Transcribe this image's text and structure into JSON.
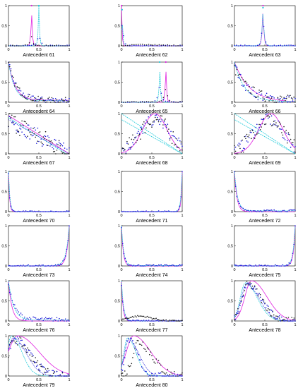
{
  "figure": {
    "y_ticks": [
      "0",
      "0.5",
      "1"
    ],
    "x_ticks": [
      "0",
      "0.5",
      "1"
    ],
    "colors": {
      "magenta": "#e020e0",
      "cyan": "#18c8d8",
      "blue": "#1a1ad8",
      "gray": "#808080",
      "dark": "#202020"
    }
  },
  "chart_data": [
    {
      "type": "line",
      "xlabel": "Antecedent 61",
      "xlim": [
        0,
        1
      ],
      "ylim": [
        0,
        1
      ],
      "peaks": [
        {
          "color": "magenta",
          "x": 0.38,
          "y": 1.0,
          "w": 0.012
        },
        {
          "color": "cyan",
          "x": 0.5,
          "y": 1.0,
          "w": 0.012
        }
      ],
      "scatter": [
        {
          "color": "blue",
          "x": 0.5,
          "y": 0.32,
          "w": 0.03
        },
        {
          "color": "dark",
          "x": 0.38,
          "y": 0.22,
          "w": 0.03
        }
      ]
    },
    {
      "type": "line",
      "xlabel": "Antecedent 62",
      "xlim": [
        0,
        1
      ],
      "ylim": [
        0,
        1
      ],
      "peaks": [
        {
          "color": "magenta",
          "x": 0.0,
          "y": 1.0,
          "w": 0.01
        },
        {
          "color": "cyan",
          "x": 0.01,
          "y": 0.9,
          "w": 0.012
        }
      ],
      "scatter": [
        {
          "color": "blue",
          "x": 0.01,
          "y": 0.85,
          "w": 0.02
        },
        {
          "color": "dark",
          "x": 0.45,
          "y": 0.05,
          "w": 0.2
        }
      ]
    },
    {
      "type": "line",
      "xlabel": "Antecedent 63",
      "xlim": [
        0,
        1
      ],
      "ylim": [
        0,
        1
      ],
      "peaks": [
        {
          "color": "magenta",
          "x": 0.47,
          "y": 1.0,
          "w": 0.015
        },
        {
          "color": "cyan",
          "x": 0.47,
          "y": 0.95,
          "w": 0.018
        }
      ],
      "scatter": [
        {
          "color": "blue",
          "x": 0.47,
          "y": 0.9,
          "w": 0.02
        }
      ]
    },
    {
      "type": "line",
      "xlabel": "Antecedent 64",
      "xlim": [
        0,
        1
      ],
      "ylim": [
        0,
        1
      ],
      "decays": [
        {
          "color": "magenta",
          "k": 9,
          "tail": 0.05
        },
        {
          "color": "cyan",
          "k": 10,
          "tail": 0.04
        }
      ],
      "decay_scatter": [
        {
          "color": "blue",
          "k": 8,
          "amp": 1.0,
          "tail": 0.05,
          "noise": 0.08
        },
        {
          "color": "dark",
          "k": 7,
          "amp": 0.9,
          "tail": 0.04,
          "noise": 0.08
        }
      ]
    },
    {
      "type": "line",
      "xlabel": "Antecedent 65",
      "xlim": [
        0,
        1
      ],
      "ylim": [
        0,
        1
      ],
      "peaks": [
        {
          "color": "magenta",
          "x": 0.73,
          "y": 1.0,
          "w": 0.012
        },
        {
          "color": "cyan",
          "x": 0.63,
          "y": 1.0,
          "w": 0.012
        }
      ],
      "scatter": [
        {
          "color": "blue",
          "x": 0.63,
          "y": 0.5,
          "w": 0.03
        },
        {
          "color": "dark",
          "x": 0.73,
          "y": 0.4,
          "w": 0.03
        }
      ]
    },
    {
      "type": "line",
      "xlabel": "Antecedent 66",
      "xlim": [
        0,
        1
      ],
      "ylim": [
        0,
        1
      ],
      "decays": [
        {
          "color": "magenta",
          "k": 4,
          "tail": 0.0
        },
        {
          "color": "cyan",
          "k": 6,
          "tail": 0.02
        }
      ],
      "decay_scatter": [
        {
          "color": "blue",
          "k": 5,
          "amp": 0.9,
          "tail": 0.05,
          "noise": 0.12
        },
        {
          "color": "dark",
          "k": 4,
          "amp": 0.8,
          "tail": 0.04,
          "noise": 0.12
        }
      ]
    },
    {
      "type": "line",
      "xlabel": "Antecedent 67",
      "xlim": [
        0,
        1
      ],
      "ylim": [
        0,
        1
      ],
      "lines": [
        {
          "color": "magenta",
          "fn": "lin",
          "a": 0.95,
          "b": -0.95
        },
        {
          "color": "cyan",
          "fn": "lin",
          "a": 0.9,
          "b": -0.95
        },
        {
          "color": "blue",
          "fn": "lin",
          "a": 0.85,
          "b": -0.85
        }
      ],
      "wide_scatter": [
        {
          "color": "blue",
          "shape": "dec",
          "noise": 0.2
        },
        {
          "color": "dark",
          "shape": "dec",
          "noise": 0.25
        }
      ]
    },
    {
      "type": "line",
      "xlabel": "Antecedent 68",
      "xlim": [
        0,
        1
      ],
      "ylim": [
        0,
        1
      ],
      "lines": [
        {
          "color": "cyan",
          "fn": "lin",
          "a": 1.0,
          "b": -1.0
        },
        {
          "color": "cyan",
          "fn": "lin",
          "a": 0.85,
          "b": -0.85
        },
        {
          "color": "magenta",
          "fn": "bump",
          "c": 0.55,
          "s": 0.2,
          "amp": 1.0
        }
      ],
      "wide_scatter": [
        {
          "color": "blue",
          "shape": "bump",
          "noise": 0.15
        },
        {
          "color": "dark",
          "shape": "bump",
          "noise": 0.2
        }
      ]
    },
    {
      "type": "line",
      "xlabel": "Antecedent 69",
      "xlim": [
        0,
        1
      ],
      "ylim": [
        0,
        1
      ],
      "lines": [
        {
          "color": "cyan",
          "fn": "lin",
          "a": 1.0,
          "b": -1.0
        },
        {
          "color": "cyan",
          "fn": "lin",
          "a": 0.85,
          "b": -0.85
        },
        {
          "color": "magenta",
          "fn": "bump",
          "c": 0.6,
          "s": 0.2,
          "amp": 1.0
        }
      ],
      "wide_scatter": [
        {
          "color": "blue",
          "shape": "bump",
          "noise": 0.15
        },
        {
          "color": "dark",
          "shape": "bump",
          "noise": 0.2
        }
      ]
    },
    {
      "type": "line",
      "xlabel": "Antecedent 70",
      "xlim": [
        0,
        1
      ],
      "ylim": [
        0,
        1
      ],
      "decays": [
        {
          "color": "magenta",
          "k": 60,
          "tail": 0.0
        },
        {
          "color": "cyan",
          "k": 45,
          "tail": 0.0
        }
      ],
      "decay_scatter": [
        {
          "color": "blue",
          "k": 50,
          "amp": 0.95,
          "tail": 0.0,
          "noise": 0.02
        }
      ]
    },
    {
      "type": "line",
      "xlabel": "Antecedent 71",
      "xlim": [
        0,
        1
      ],
      "ylim": [
        0,
        1
      ],
      "rises": [
        {
          "color": "magenta",
          "k": 60
        },
        {
          "color": "cyan",
          "k": 45
        }
      ],
      "rise_scatter": [
        {
          "color": "blue",
          "k": 50,
          "noise": 0.02
        }
      ]
    },
    {
      "type": "line",
      "xlabel": "Antecedent 72",
      "xlim": [
        0,
        1
      ],
      "ylim": [
        0,
        1
      ],
      "decays": [
        {
          "color": "magenta",
          "k": 25,
          "tail": 0.0
        },
        {
          "color": "cyan",
          "k": 20,
          "tail": 0.02
        }
      ],
      "decay_scatter": [
        {
          "color": "blue",
          "k": 22,
          "amp": 0.95,
          "tail": 0.02,
          "noise": 0.03
        }
      ]
    },
    {
      "type": "line",
      "xlabel": "Antecedent 73",
      "xlim": [
        0,
        1
      ],
      "ylim": [
        0,
        1
      ],
      "rises": [
        {
          "color": "magenta",
          "k": 25
        },
        {
          "color": "cyan",
          "k": 20
        }
      ],
      "rise_scatter": [
        {
          "color": "blue",
          "k": 22,
          "noise": 0.03
        }
      ]
    },
    {
      "type": "line",
      "xlabel": "Antecedent 74",
      "xlim": [
        0,
        1
      ],
      "ylim": [
        0,
        1
      ],
      "decays": [
        {
          "color": "magenta",
          "k": 35,
          "tail": 0.0
        },
        {
          "color": "cyan",
          "k": 28,
          "tail": 0.01
        }
      ],
      "decay_scatter": [
        {
          "color": "blue",
          "k": 30,
          "amp": 0.95,
          "tail": 0.01,
          "noise": 0.03
        }
      ]
    },
    {
      "type": "line",
      "xlabel": "Antecedent 75",
      "xlim": [
        0,
        1
      ],
      "ylim": [
        0,
        1
      ],
      "rises": [
        {
          "color": "magenta",
          "k": 35
        },
        {
          "color": "cyan",
          "k": 28
        }
      ],
      "rise_scatter": [
        {
          "color": "blue",
          "k": 30,
          "noise": 0.03
        }
      ]
    },
    {
      "type": "line",
      "xlabel": "Antecedent 76",
      "xlim": [
        0,
        1
      ],
      "ylim": [
        0,
        1
      ],
      "decays": [
        {
          "color": "magenta",
          "k": 18,
          "tail": 0.0
        },
        {
          "color": "cyan",
          "k": 12,
          "tail": 0.02
        }
      ],
      "decay_scatter": [
        {
          "color": "blue",
          "k": 10,
          "amp": 0.9,
          "tail": 0.03,
          "noise": 0.06
        }
      ]
    },
    {
      "type": "line",
      "xlabel": "Antecedent 77",
      "xlim": [
        0,
        1
      ],
      "ylim": [
        0,
        1
      ],
      "decays": [
        {
          "color": "magenta",
          "k": 40,
          "tail": 0.0
        },
        {
          "color": "cyan",
          "k": 30,
          "tail": 0.0
        }
      ],
      "hump": {
        "color": "dark",
        "c": 0.3,
        "s": 0.2,
        "amp": 0.12
      },
      "decay_scatter": [
        {
          "color": "blue",
          "k": 30,
          "amp": 0.9,
          "tail": 0.0,
          "noise": 0.02
        }
      ]
    },
    {
      "type": "line",
      "xlabel": "Antecedent 78",
      "xlim": [
        0,
        1
      ],
      "ylim": [
        0,
        1
      ],
      "lines": [
        {
          "color": "magenta",
          "fn": "skew",
          "c": 0.28,
          "s": 0.18,
          "amp": 1.0
        },
        {
          "color": "cyan",
          "fn": "skew",
          "c": 0.18,
          "s": 0.14,
          "amp": 0.95
        },
        {
          "color": "blue",
          "fn": "skew",
          "c": 0.2,
          "s": 0.15,
          "amp": 0.9
        }
      ],
      "wide_scatter": [
        {
          "color": "dark",
          "shape": "skew",
          "noise": 0.1
        },
        {
          "color": "blue",
          "shape": "skew",
          "noise": 0.08
        }
      ]
    },
    {
      "type": "line",
      "xlabel": "Antecedent 79",
      "xlim": [
        0,
        1
      ],
      "ylim": [
        0,
        1
      ],
      "lines": [
        {
          "color": "magenta",
          "fn": "skew",
          "c": 0.15,
          "s": 0.25,
          "amp": 1.0
        },
        {
          "color": "cyan",
          "fn": "skew",
          "c": 0.05,
          "s": 0.12,
          "amp": 1.0
        },
        {
          "color": "blue",
          "fn": "skew",
          "c": 0.08,
          "s": 0.15,
          "amp": 0.95
        }
      ],
      "wide_scatter": [
        {
          "color": "dark",
          "shape": "skew79",
          "noise": 0.12
        },
        {
          "color": "blue",
          "shape": "skew79",
          "noise": 0.1
        }
      ]
    },
    {
      "type": "line",
      "xlabel": "Antecedent 80",
      "xlim": [
        0,
        1
      ],
      "ylim": [
        0,
        1
      ],
      "lines": [
        {
          "color": "magenta",
          "fn": "skew",
          "c": 0.2,
          "s": 0.2,
          "amp": 1.0
        },
        {
          "color": "cyan",
          "fn": "skew",
          "c": 0.1,
          "s": 0.1,
          "amp": 0.95
        },
        {
          "color": "blue",
          "fn": "skew",
          "c": 0.12,
          "s": 0.12,
          "amp": 0.9
        }
      ],
      "wide_scatter": [
        {
          "color": "dark",
          "shape": "skew80",
          "noise": 0.12
        },
        {
          "color": "blue",
          "shape": "skew80b",
          "noise": 0.08
        }
      ]
    }
  ]
}
